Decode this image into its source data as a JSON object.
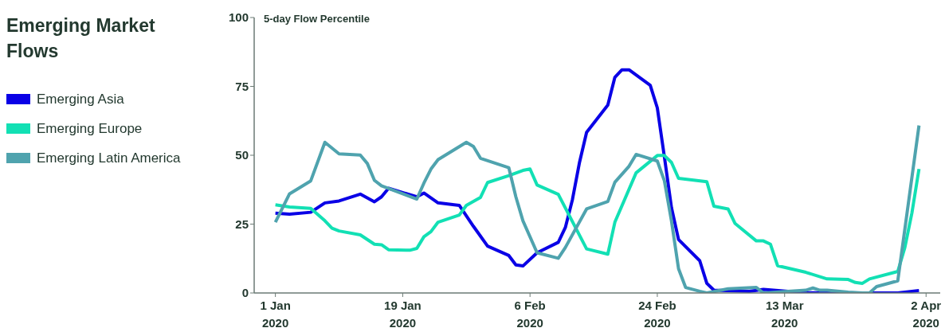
{
  "chart_data": {
    "type": "line",
    "title": "Emerging Market Flows",
    "ylabel": "5-day  Flow Percentile",
    "legend": "left",
    "ylim": [
      0,
      100
    ],
    "yticks": [
      0,
      25,
      50,
      75,
      100
    ],
    "xlim": [
      "2019-12-29",
      "2020-04-04"
    ],
    "xticks": [
      {
        "value": "2020-01-01",
        "label": "1 Jan 2020"
      },
      {
        "value": "2020-01-19",
        "label": "19 Jan 2020"
      },
      {
        "value": "2020-02-06",
        "label": "6 Feb 2020"
      },
      {
        "value": "2020-02-24",
        "label": "24 Feb 2020"
      },
      {
        "value": "2020-03-13",
        "label": "13 Mar 2020"
      },
      {
        "value": "2020-04-02",
        "label": "2 Apr 2020"
      }
    ],
    "series": [
      {
        "name": "Emerging Asia",
        "color": "#0a00e6",
        "x": [
          "2020-01-01",
          "2020-01-03",
          "2020-01-06",
          "2020-01-08",
          "2020-01-10",
          "2020-01-13",
          "2020-01-15",
          "2020-01-16",
          "2020-01-17",
          "2020-01-21",
          "2020-01-22",
          "2020-01-24",
          "2020-01-27",
          "2020-01-29",
          "2020-01-31",
          "2020-02-03",
          "2020-02-04",
          "2020-02-05",
          "2020-02-07",
          "2020-02-10",
          "2020-02-11",
          "2020-02-12",
          "2020-02-13",
          "2020-02-14",
          "2020-02-17",
          "2020-02-18",
          "2020-02-19",
          "2020-02-20",
          "2020-02-23",
          "2020-02-24",
          "2020-02-25",
          "2020-02-26",
          "2020-02-27",
          "2020-03-01",
          "2020-03-02",
          "2020-03-03",
          "2020-03-08",
          "2020-03-10",
          "2020-03-16",
          "2020-03-24",
          "2020-03-29",
          "2020-04-01"
        ],
        "values": [
          29,
          28.6,
          29.3,
          32.7,
          33.4,
          35.9,
          33.1,
          34.9,
          38,
          34.9,
          36.3,
          32.7,
          31.8,
          24.2,
          17,
          13.6,
          10.2,
          9.8,
          14.6,
          18.4,
          23.8,
          33.9,
          47.4,
          58.3,
          68.2,
          78.3,
          81,
          81,
          75.4,
          67.2,
          49.4,
          31,
          19.4,
          11.7,
          3.5,
          1,
          0.6,
          1.3,
          0.1,
          0,
          0,
          0.9
        ]
      },
      {
        "name": "Emerging Europe",
        "color": "#12e0b4",
        "x": [
          "2020-01-01",
          "2020-01-03",
          "2020-01-06",
          "2020-01-08",
          "2020-01-09",
          "2020-01-10",
          "2020-01-13",
          "2020-01-15",
          "2020-01-16",
          "2020-01-17",
          "2020-01-20",
          "2020-01-21",
          "2020-01-22",
          "2020-01-23",
          "2020-01-24",
          "2020-01-27",
          "2020-01-28",
          "2020-01-30",
          "2020-01-31",
          "2020-02-03",
          "2020-02-05",
          "2020-02-06",
          "2020-02-07",
          "2020-02-10",
          "2020-02-14",
          "2020-02-17",
          "2020-02-18",
          "2020-02-21",
          "2020-02-24",
          "2020-02-25",
          "2020-02-26",
          "2020-02-27",
          "2020-03-02",
          "2020-03-03",
          "2020-03-05",
          "2020-03-06",
          "2020-03-09",
          "2020-03-10",
          "2020-03-11",
          "2020-03-12",
          "2020-03-16",
          "2020-03-19",
          "2020-03-22",
          "2020-03-23",
          "2020-03-24",
          "2020-03-25",
          "2020-03-29",
          "2020-03-30",
          "2020-03-31",
          "2020-04-01"
        ],
        "values": [
          32,
          31.2,
          30.7,
          26.2,
          23.5,
          22.5,
          21.1,
          17.7,
          17.5,
          15.7,
          15.5,
          16.2,
          20.4,
          22.3,
          25.7,
          28.3,
          31.8,
          34.7,
          40.1,
          42.6,
          44.5,
          45,
          39.2,
          35.8,
          16,
          14.1,
          25.7,
          43.6,
          49.9,
          49.9,
          47.4,
          41.6,
          40.4,
          31.5,
          30.5,
          25.2,
          18.9,
          18.9,
          17.7,
          9.9,
          7.5,
          5.1,
          4.9,
          3.8,
          3.5,
          5.1,
          7.8,
          16.5,
          29.1,
          45
        ]
      },
      {
        "name": "Emerging Latin America",
        "color": "#4fa3ae",
        "x": [
          "2020-01-01",
          "2020-01-03",
          "2020-01-06",
          "2020-01-08",
          "2020-01-10",
          "2020-01-13",
          "2020-01-14",
          "2020-01-15",
          "2020-01-16",
          "2020-01-21",
          "2020-01-22",
          "2020-01-23",
          "2020-01-24",
          "2020-01-28",
          "2020-01-29",
          "2020-01-30",
          "2020-02-03",
          "2020-02-04",
          "2020-02-05",
          "2020-02-07",
          "2020-02-10",
          "2020-02-11",
          "2020-02-14",
          "2020-02-17",
          "2020-02-18",
          "2020-02-19",
          "2020-02-20",
          "2020-02-21",
          "2020-02-24",
          "2020-02-25",
          "2020-02-26",
          "2020-02-27",
          "2020-02-28",
          "2020-03-01",
          "2020-03-02",
          "2020-03-05",
          "2020-03-09",
          "2020-03-10",
          "2020-03-16",
          "2020-03-17",
          "2020-03-18",
          "2020-03-19",
          "2020-03-22",
          "2020-03-24",
          "2020-03-25",
          "2020-03-26",
          "2020-03-29",
          "2020-04-01"
        ],
        "values": [
          25.7,
          36,
          40.7,
          54.7,
          50.5,
          50.1,
          47,
          40.9,
          38.9,
          34.1,
          39.9,
          45,
          48.4,
          54.7,
          53.2,
          48.9,
          45.5,
          34.9,
          26.2,
          14.6,
          12.6,
          16.5,
          30.5,
          33.2,
          40.2,
          43.1,
          46,
          50.3,
          47.9,
          40.7,
          26.2,
          8.8,
          2,
          0.6,
          0,
          1.5,
          2,
          0,
          1,
          1.8,
          1,
          1,
          0.3,
          0,
          0,
          2.3,
          4.4,
          60.8
        ]
      }
    ]
  }
}
